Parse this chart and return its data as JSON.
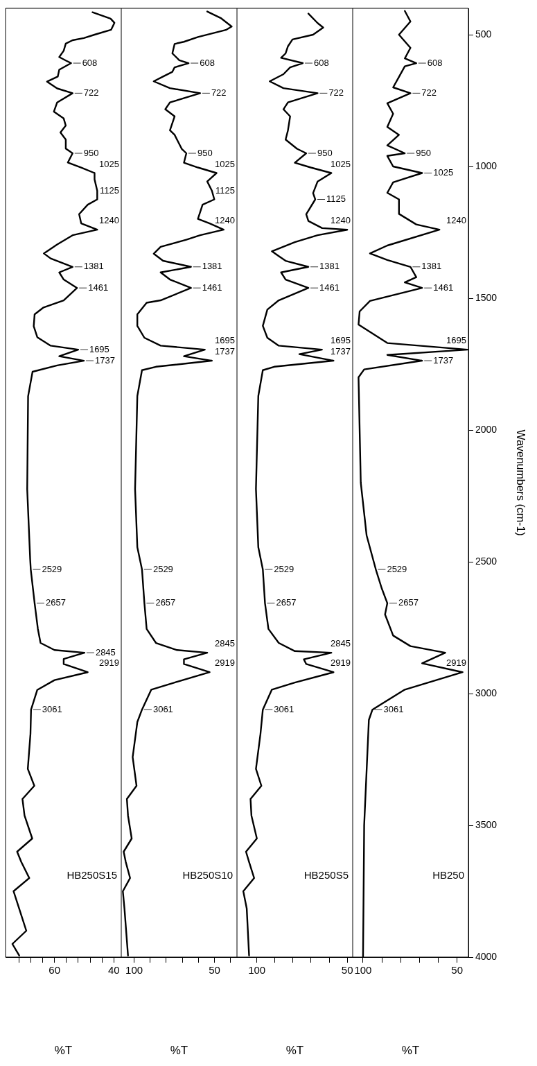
{
  "chart_data": [
    {
      "type": "line",
      "xlabel": "%T",
      "xlim": [
        76.5,
        37.5
      ],
      "ylim": [
        4000,
        400
      ],
      "yticks": [
        4000,
        3500,
        3000,
        2500,
        2000,
        1500,
        1000,
        500
      ],
      "xticks": [
        40,
        {
          "value": 44,
          "label": null
        },
        {
          "value": 48,
          "label": null
        },
        {
          "value": 52,
          "label": null
        },
        {
          "value": 56,
          "label": null
        },
        60,
        {
          "value": 64,
          "label": null
        },
        {
          "value": 68,
          "label": null
        },
        {
          "value": 72,
          "label": null
        }
      ],
      "tick_labels": "x",
      "series": [
        {
          "name": "HB250S15",
          "color": "#000000",
          "values": [
            415,
            439,
            455,
            481,
            500,
            513,
            521,
            534,
            561,
            585,
            598,
            608,
            633,
            659,
            678,
            704,
            722,
            757,
            792,
            818,
            845,
            871,
            898,
            932,
            950,
            985,
            1004,
            1025,
            1049,
            1092,
            1125,
            1145,
            1181,
            1216,
            1240,
            1261,
            1296,
            1330,
            1349,
            1381,
            1402,
            1429,
            1461,
            1508,
            1535,
            1561,
            1606,
            1648,
            1680,
            1695,
            1720,
            1737,
            1755,
            1779,
            1872,
            2225,
            2490,
            2529,
            2657,
            2755,
            2808,
            2835,
            2845,
            2869,
            2888,
            2919,
            2949,
            2986,
            3061,
            3153,
            3286,
            3350,
            3400,
            3463,
            3550,
            3600,
            3639,
            3700,
            3750,
            3816,
            3900,
            3950,
            3994
          ],
          "x": [
            47.2,
            41.1,
            39.8,
            40.9,
            46.5,
            50.1,
            53.9,
            56.2,
            56.9,
            58.4,
            56.2,
            54.4,
            58.4,
            58.9,
            62.5,
            59.1,
            53.9,
            59.1,
            60.2,
            56.9,
            56.2,
            58.0,
            56.2,
            56.2,
            53.9,
            55.5,
            51.0,
            46.5,
            46.5,
            45.6,
            45.6,
            48.8,
            51.7,
            51.0,
            45.6,
            53.9,
            59.1,
            63.6,
            61.3,
            53.9,
            58.4,
            56.9,
            52.4,
            56.9,
            63.7,
            66.7,
            67.0,
            65.8,
            61.3,
            52.0,
            58.4,
            50.1,
            59.1,
            67.4,
            68.9,
            69.2,
            68.2,
            68.0,
            66.7,
            65.6,
            64.7,
            60.0,
            49.9,
            56.9,
            56.9,
            48.8,
            60.0,
            65.8,
            67.9,
            68.1,
            69.0,
            66.8,
            70.8,
            70.1,
            67.5,
            72.6,
            71.2,
            68.5,
            73.8,
            71.9,
            69.5,
            74.2,
            71.9
          ]
        }
      ],
      "annotations": [
        {
          "text": "608",
          "y": 608,
          "x": 54.4
        },
        {
          "text": "722",
          "y": 722,
          "x": 53.9
        },
        {
          "text": "950",
          "y": 950,
          "x": 53.9
        },
        {
          "text": "1025",
          "y": 1025,
          "x": 46.5
        },
        {
          "text": "1125",
          "y": 1125,
          "x": 45.6
        },
        {
          "text": "1240",
          "y": 1240,
          "x": 45.6
        },
        {
          "text": "1381",
          "y": 1381,
          "x": 53.9
        },
        {
          "text": "1461",
          "y": 1461,
          "x": 52.4
        },
        {
          "text": "1695",
          "y": 1695,
          "x": 52.0
        },
        {
          "text": "1737",
          "y": 1737,
          "x": 50.1
        },
        {
          "text": "2529",
          "y": 2529,
          "x": 68.0
        },
        {
          "text": "2657",
          "y": 2657,
          "x": 66.7
        },
        {
          "text": "2845",
          "y": 2845,
          "x": 49.9
        },
        {
          "text": "2919",
          "y": 2919,
          "x": 48.8
        },
        {
          "text": "3061",
          "y": 3061,
          "x": 67.9
        }
      ]
    },
    {
      "type": "line",
      "xlabel": "%T",
      "xlim": [
        108,
        36
      ],
      "ylim": [
        4000,
        400
      ],
      "yticks": [
        4000,
        3500,
        3000,
        2500,
        2000,
        1500,
        1000,
        500
      ],
      "xticks": [
        {
          "value": 40,
          "label": null
        },
        50,
        {
          "value": 60,
          "label": null
        },
        {
          "value": 70,
          "label": null
        },
        {
          "value": 80,
          "label": null
        },
        {
          "value": 90,
          "label": null
        },
        100
      ],
      "tick_labels": "x",
      "series": [
        {
          "name": "HB250S10",
          "color": "#000000",
          "values": [
            412,
            438,
            469,
            482,
            509,
            527,
            535,
            571,
            597,
            608,
            624,
            641,
            659,
            677,
            703,
            722,
            757,
            783,
            810,
            863,
            880,
            933,
            950,
            986,
            1004,
            1025,
            1057,
            1092,
            1125,
            1145,
            1199,
            1216,
            1240,
            1261,
            1278,
            1305,
            1331,
            1358,
            1381,
            1402,
            1429,
            1461,
            1508,
            1517,
            1561,
            1605,
            1650,
            1680,
            1695,
            1720,
            1737,
            1760,
            1773,
            1871,
            2224,
            2445,
            2529,
            2657,
            2755,
            2808,
            2835,
            2845,
            2870,
            2888,
            2919,
            2958,
            2985,
            3061,
            3108,
            3241,
            3350,
            3400,
            3463,
            3550,
            3600,
            3639,
            3700,
            3750,
            3816,
            3994
          ],
          "x": [
            54.5,
            45.8,
            39.3,
            42.9,
            60.3,
            69.0,
            74.8,
            76.2,
            71.9,
            66.1,
            74.8,
            76.2,
            82.0,
            87.8,
            77.7,
            58.9,
            77.7,
            80.6,
            74.8,
            77.7,
            74.8,
            70.4,
            67.5,
            69.0,
            60.3,
            48.7,
            54.5,
            51.6,
            50.1,
            57.4,
            60.3,
            53.0,
            44.3,
            58.9,
            67.5,
            83.5,
            87.8,
            82.0,
            64.6,
            83.5,
            77.7,
            64.6,
            83.5,
            92.2,
            98.0,
            98.0,
            93.6,
            83.5,
            56.0,
            69.0,
            51.6,
            86.4,
            95.1,
            98.0,
            99.4,
            98.0,
            95.1,
            93.6,
            92.2,
            86.4,
            73.3,
            54.5,
            69.0,
            69.0,
            53.0,
            74.8,
            89.3,
            95.1,
            98.0,
            100.9,
            98.5,
            104.5,
            103.8,
            101.5,
            106.5,
            105.2,
            102.5,
            107.0,
            106.0,
            103.8
          ]
        }
      ],
      "annotations": [
        {
          "text": "608",
          "y": 608,
          "x": 66.1
        },
        {
          "text": "722",
          "y": 722,
          "x": 58.9
        },
        {
          "text": "950",
          "y": 950,
          "x": 67.5
        },
        {
          "text": "1025",
          "y": 1025,
          "x": 48.7
        },
        {
          "text": "1125",
          "y": 1125,
          "x": 50.1
        },
        {
          "text": "1240",
          "y": 1240,
          "x": 44.3
        },
        {
          "text": "1381",
          "y": 1381,
          "x": 64.6
        },
        {
          "text": "1461",
          "y": 1461,
          "x": 64.6
        },
        {
          "text": "1695",
          "y": 1695,
          "x": 56.0
        },
        {
          "text": "1737",
          "y": 1737,
          "x": 51.6
        },
        {
          "text": "2529",
          "y": 2529,
          "x": 95.1
        },
        {
          "text": "2657",
          "y": 2657,
          "x": 93.6
        },
        {
          "text": "2845",
          "y": 2845,
          "x": 54.5
        },
        {
          "text": "2919",
          "y": 2919,
          "x": 53.0
        },
        {
          "text": "3061",
          "y": 3061,
          "x": 95.1
        }
      ]
    },
    {
      "type": "line",
      "xlabel": "%T",
      "xlim": [
        111,
        47
      ],
      "ylim": [
        4000,
        400
      ],
      "yticks": [
        4000,
        3500,
        3000,
        2500,
        2000,
        1500,
        1000,
        500
      ],
      "xticks": [
        50,
        {
          "value": 60,
          "label": null
        },
        {
          "value": 70,
          "label": null
        },
        {
          "value": 80,
          "label": null
        },
        {
          "value": 90,
          "label": null
        },
        100
      ],
      "tick_labels": "x",
      "series": [
        {
          "name": "HB250S5",
          "color": "#000000",
          "values": [
            420,
            456,
            473,
            500,
            518,
            544,
            571,
            588,
            608,
            624,
            650,
            677,
            703,
            722,
            757,
            783,
            810,
            863,
            898,
            933,
            950,
            986,
            1004,
            1025,
            1057,
            1101,
            1125,
            1181,
            1207,
            1234,
            1240,
            1261,
            1287,
            1322,
            1340,
            1358,
            1381,
            1402,
            1429,
            1461,
            1508,
            1543,
            1605,
            1650,
            1680,
            1695,
            1712,
            1737,
            1760,
            1773,
            1871,
            2224,
            2445,
            2529,
            2657,
            2755,
            2808,
            2839,
            2845,
            2870,
            2888,
            2919,
            2958,
            2985,
            3061,
            3153,
            3286,
            3350,
            3400,
            3463,
            3550,
            3600,
            3639,
            3700,
            3750,
            3816,
            3994
          ],
          "x": [
            71.5,
            66.4,
            63.3,
            68.9,
            80.3,
            82.8,
            84.1,
            86.6,
            74.6,
            81.6,
            85.3,
            92.9,
            85.3,
            66.4,
            82.8,
            85.3,
            81.6,
            82.8,
            84.1,
            77.8,
            72.7,
            79.0,
            70.2,
            58.8,
            66.4,
            68.9,
            67.7,
            72.7,
            71.5,
            63.9,
            50.0,
            66.4,
            79.0,
            91.7,
            87.9,
            84.1,
            71.5,
            86.6,
            84.1,
            71.5,
            87.9,
            94.2,
            96.7,
            94.2,
            87.9,
            64.0,
            76.5,
            57.6,
            90.4,
            96.7,
            99.2,
            100.5,
            99.2,
            96.7,
            95.5,
            93.6,
            87.9,
            79.0,
            58.8,
            74.0,
            72.7,
            57.6,
            79.0,
            91.7,
            96.7,
            98.0,
            100.5,
            97.5,
            103.5,
            103.0,
            100.0,
            106.0,
            104.3,
            101.5,
            107.5,
            105.6,
            104.3
          ]
        }
      ],
      "annotations": [
        {
          "text": "608",
          "y": 608,
          "x": 74.6
        },
        {
          "text": "722",
          "y": 722,
          "x": 66.4
        },
        {
          "text": "950",
          "y": 950,
          "x": 72.7
        },
        {
          "text": "1025",
          "y": 1025,
          "x": 58.8
        },
        {
          "text": "1125",
          "y": 1125,
          "x": 67.7
        },
        {
          "text": "1240",
          "y": 1240,
          "x": 50.0
        },
        {
          "text": "1381",
          "y": 1381,
          "x": 71.5
        },
        {
          "text": "1461",
          "y": 1461,
          "x": 71.5
        },
        {
          "text": "1695",
          "y": 1695,
          "x": 64.0
        },
        {
          "text": "1737",
          "y": 1737,
          "x": 57.6
        },
        {
          "text": "2529",
          "y": 2529,
          "x": 96.7
        },
        {
          "text": "2657",
          "y": 2657,
          "x": 95.5
        },
        {
          "text": "2845",
          "y": 2845,
          "x": 58.8
        },
        {
          "text": "2919",
          "y": 2919,
          "x": 57.6
        },
        {
          "text": "3061",
          "y": 3061,
          "x": 96.7
        }
      ]
    },
    {
      "type": "line",
      "xlabel": "%T",
      "ylabel": "Wavenumbers (cm-1)",
      "xlim": [
        105.5,
        44
      ],
      "ylim": [
        4000,
        400
      ],
      "yticks": [
        4000,
        3500,
        3000,
        2500,
        2000,
        1500,
        1000,
        500
      ],
      "xticks": [
        50,
        {
          "value": 60,
          "label": null
        },
        {
          "value": 70,
          "label": null
        },
        {
          "value": 80,
          "label": null
        },
        {
          "value": 90,
          "label": null
        },
        100
      ],
      "series": [
        {
          "name": "HB250",
          "color": "#000000",
          "values": [
            410,
            450,
            500,
            550,
            590,
            608,
            620,
            660,
            700,
            722,
            760,
            800,
            850,
            880,
            920,
            950,
            960,
            1000,
            1025,
            1060,
            1100,
            1125,
            1180,
            1220,
            1240,
            1300,
            1330,
            1355,
            1381,
            1420,
            1440,
            1461,
            1510,
            1550,
            1600,
            1670,
            1695,
            1715,
            1737,
            1770,
            1800,
            2200,
            2400,
            2529,
            2600,
            2657,
            2700,
            2780,
            2820,
            2845,
            2885,
            2919,
            2985,
            3061,
            3100,
            3500,
            4000
          ],
          "x": [
            77.8,
            74.8,
            80.9,
            74.8,
            77.8,
            71.7,
            77.8,
            80.9,
            84.0,
            74.8,
            87.1,
            84.0,
            87.1,
            80.9,
            87.1,
            77.8,
            87.1,
            84.0,
            68.6,
            84.0,
            87.1,
            80.9,
            80.9,
            71.7,
            59.4,
            87.1,
            96.3,
            87.1,
            74.8,
            71.7,
            77.8,
            68.6,
            96.3,
            101.8,
            102.4,
            87.1,
            44.5,
            87.1,
            68.6,
            99.4,
            102.4,
            101.2,
            98.1,
            93.2,
            90.1,
            87.1,
            88.3,
            84.0,
            74.8,
            56.3,
            68.6,
            47.1,
            77.8,
            95.0,
            96.9,
            99.4,
            100.0
          ]
        }
      ],
      "annotations": [
        {
          "text": "608",
          "y": 608,
          "x": 71.7
        },
        {
          "text": "722",
          "y": 722,
          "x": 74.8
        },
        {
          "text": "950",
          "y": 950,
          "x": 77.8
        },
        {
          "text": "1025",
          "y": 1025,
          "x": 68.6
        },
        {
          "text": "1240",
          "y": 1240,
          "x": 59.4
        },
        {
          "text": "1381",
          "y": 1381,
          "x": 74.8
        },
        {
          "text": "1461",
          "y": 1461,
          "x": 68.6
        },
        {
          "text": "1695",
          "y": 1695,
          "x": 44.5
        },
        {
          "text": "1737",
          "y": 1737,
          "x": 68.6
        },
        {
          "text": "2529",
          "y": 2529,
          "x": 93.2
        },
        {
          "text": "2657",
          "y": 2657,
          "x": 87.1
        },
        {
          "text": "2919",
          "y": 2919,
          "x": 47.1
        },
        {
          "text": "3061",
          "y": 3061,
          "x": 95.0
        }
      ]
    }
  ]
}
